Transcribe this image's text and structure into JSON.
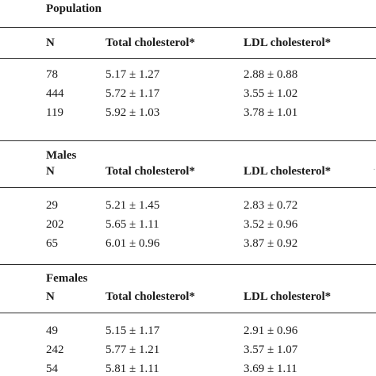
{
  "population": {
    "section_title": "Population",
    "headers": {
      "n": "N",
      "total": "Total cholesterol*",
      "ldl": "LDL cholesterol*"
    },
    "rows": [
      {
        "n": "78",
        "total": "5.17 ± 1.27",
        "ldl": "2.88 ± 0.88"
      },
      {
        "n": "444",
        "total": "5.72 ± 1.17",
        "ldl": "3.55 ± 1.02"
      },
      {
        "n": "119",
        "total": "5.92 ± 1.03",
        "ldl": "3.78 ± 1.01"
      }
    ]
  },
  "males": {
    "section_title": "Males",
    "headers": {
      "n": "N",
      "total": "Total cholesterol*",
      "ldl": "LDL cholesterol*"
    },
    "rows": [
      {
        "n": "29",
        "total": "5.21 ± 1.45",
        "ldl": "2.83 ± 0.72"
      },
      {
        "n": "202",
        "total": "5.65 ± 1.11",
        "ldl": "3.52 ± 0.96"
      },
      {
        "n": "65",
        "total": "6.01 ± 0.96",
        "ldl": "3.87 ± 0.92"
      }
    ]
  },
  "females": {
    "section_title": "Females",
    "headers": {
      "n": "N",
      "total": "Total cholesterol*",
      "ldl": "LDL cholesterol*"
    },
    "rows": [
      {
        "n": "49",
        "total": "5.15 ± 1.17",
        "ldl": "2.91 ± 0.96"
      },
      {
        "n": "242",
        "total": "5.77 ± 1.21",
        "ldl": "3.57 ± 1.07"
      },
      {
        "n": "54",
        "total": "5.81 ± 1.11",
        "ldl": "3.69 ± 1.11"
      }
    ]
  }
}
